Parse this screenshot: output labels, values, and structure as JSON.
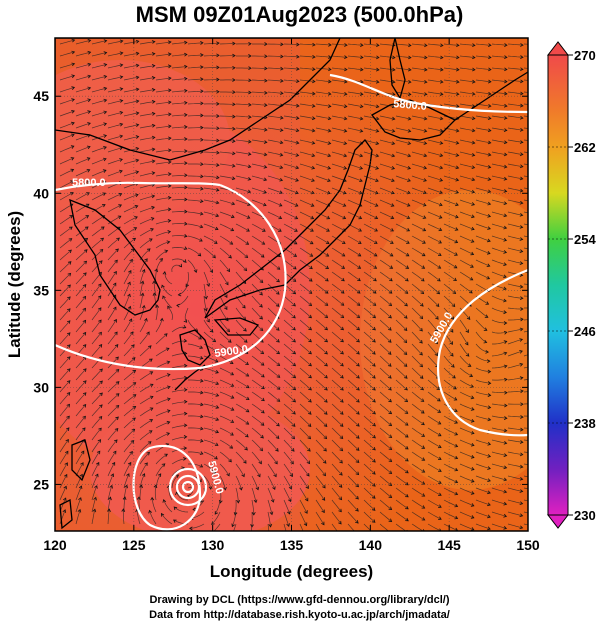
{
  "title": "MSM 09Z01Aug2023 (500.0hPa)",
  "x_axis": {
    "label": "Longitude (degrees)",
    "ticks": [
      "120",
      "125",
      "130",
      "135",
      "140",
      "145",
      "150"
    ]
  },
  "y_axis": {
    "label": "Latitude  (degrees)",
    "ticks": [
      "25",
      "30",
      "35",
      "40",
      "45"
    ]
  },
  "colorbar": {
    "ticks": [
      "270",
      "262",
      "254",
      "246",
      "238",
      "230"
    ],
    "min": 230,
    "max": 270
  },
  "contours": [
    {
      "label": "5800.0"
    },
    {
      "label": "5800.0"
    },
    {
      "label": "5900.0"
    },
    {
      "label": "5900.0"
    },
    {
      "label": "5900.0"
    }
  ],
  "credits": {
    "line1": "Drawing by DCL (https://www.gfd-dennou.org/library/dcl/)",
    "line2": "Data from http://database.rish.kyoto-u.ac.jp/arch/jmadata/"
  },
  "colors": {
    "frame": "#000000",
    "contour": "#ffffff",
    "coast": "#000000",
    "field_warm": "#f0563a",
    "field_hot": "#e85a10",
    "field_orange": "#f07018"
  }
}
